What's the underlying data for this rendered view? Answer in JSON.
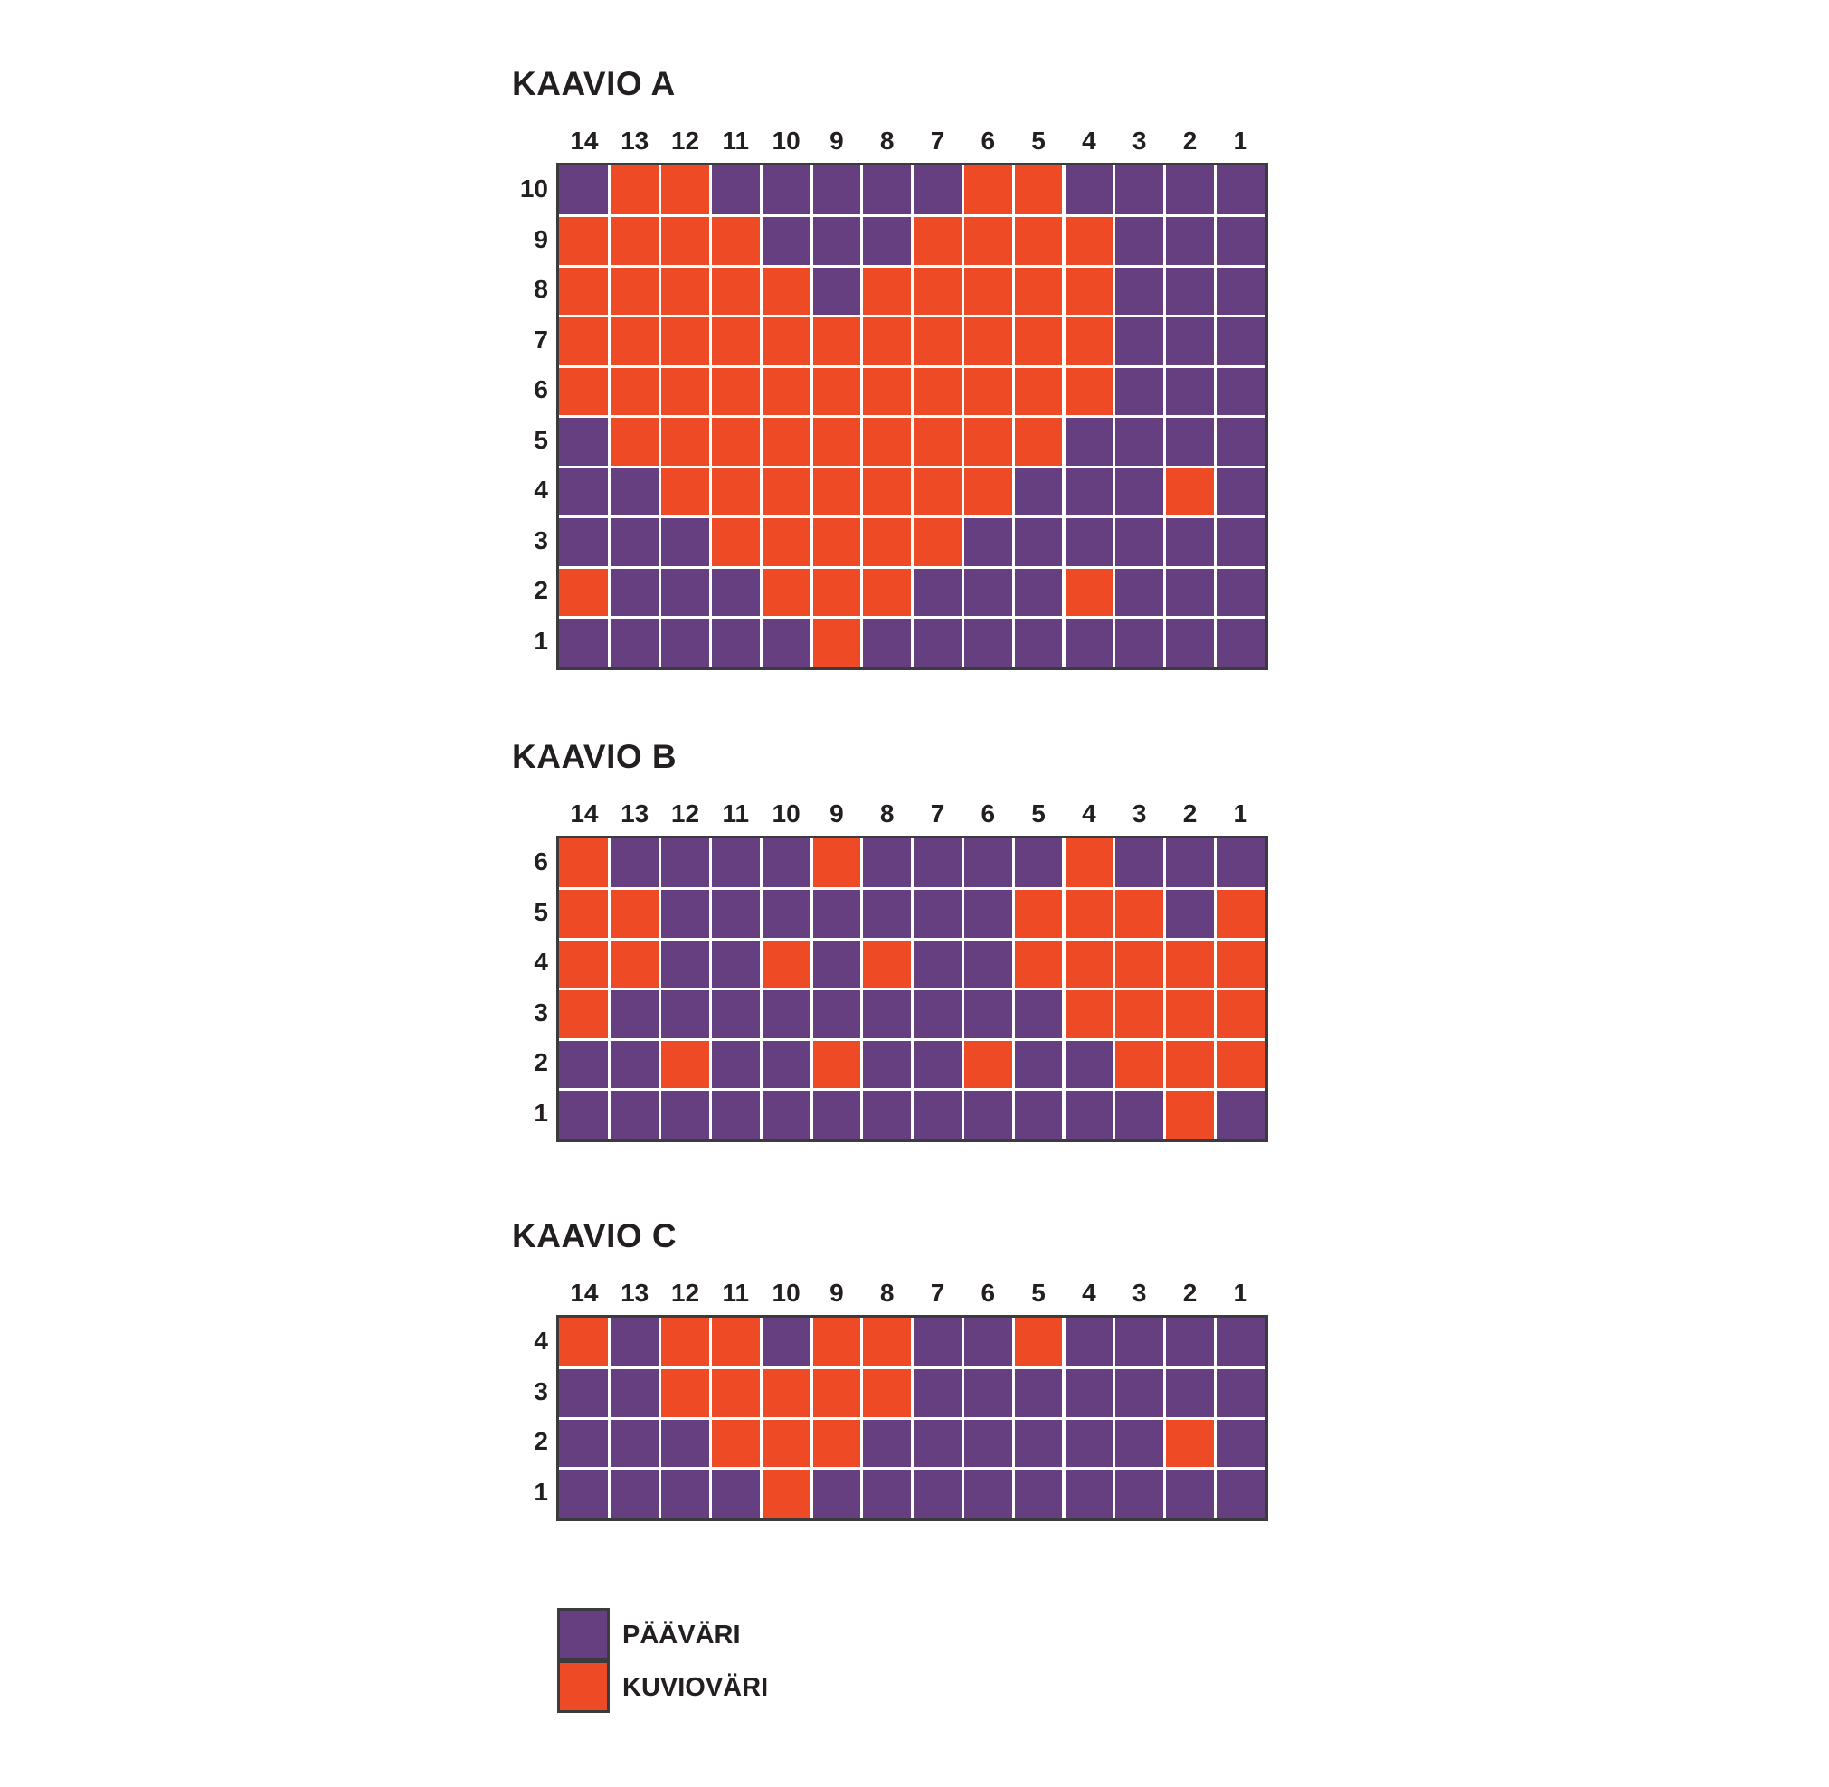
{
  "colors": {
    "main": "#663f80",
    "pattern": "#ee4a26",
    "grid_line": "#ffffff",
    "border": "#3b3a3c"
  },
  "chart_data": [
    {
      "type": "heatmap",
      "title": "KAAVIO A",
      "columns": [
        "14",
        "13",
        "12",
        "11",
        "10",
        "9",
        "8",
        "7",
        "6",
        "5",
        "4",
        "3",
        "2",
        "1"
      ],
      "rows": [
        "10",
        "9",
        "8",
        "7",
        "6",
        "5",
        "4",
        "3",
        "2",
        "1"
      ],
      "cells": [
        [
          0,
          1,
          1,
          0,
          0,
          0,
          0,
          0,
          1,
          1,
          0,
          0,
          0,
          0
        ],
        [
          1,
          1,
          1,
          1,
          0,
          0,
          0,
          1,
          1,
          1,
          1,
          0,
          0,
          0
        ],
        [
          1,
          1,
          1,
          1,
          1,
          0,
          1,
          1,
          1,
          1,
          1,
          0,
          0,
          0
        ],
        [
          1,
          1,
          1,
          1,
          1,
          1,
          1,
          1,
          1,
          1,
          1,
          0,
          0,
          0
        ],
        [
          1,
          1,
          1,
          1,
          1,
          1,
          1,
          1,
          1,
          1,
          1,
          0,
          0,
          0
        ],
        [
          0,
          1,
          1,
          1,
          1,
          1,
          1,
          1,
          1,
          1,
          0,
          0,
          0,
          0
        ],
        [
          0,
          0,
          1,
          1,
          1,
          1,
          1,
          1,
          1,
          0,
          0,
          0,
          1,
          0
        ],
        [
          0,
          0,
          0,
          1,
          1,
          1,
          1,
          1,
          0,
          0,
          0,
          0,
          0,
          0
        ],
        [
          1,
          0,
          0,
          0,
          1,
          1,
          1,
          0,
          0,
          0,
          1,
          0,
          0,
          0
        ],
        [
          0,
          0,
          0,
          0,
          0,
          1,
          0,
          0,
          0,
          0,
          0,
          0,
          0,
          0
        ]
      ]
    },
    {
      "type": "heatmap",
      "title": "KAAVIO B",
      "columns": [
        "14",
        "13",
        "12",
        "11",
        "10",
        "9",
        "8",
        "7",
        "6",
        "5",
        "4",
        "3",
        "2",
        "1"
      ],
      "rows": [
        "6",
        "5",
        "4",
        "3",
        "2",
        "1"
      ],
      "cells": [
        [
          1,
          0,
          0,
          0,
          0,
          1,
          0,
          0,
          0,
          0,
          1,
          0,
          0,
          0
        ],
        [
          1,
          1,
          0,
          0,
          0,
          0,
          0,
          0,
          0,
          1,
          1,
          1,
          0,
          1
        ],
        [
          1,
          1,
          0,
          0,
          1,
          0,
          1,
          0,
          0,
          1,
          1,
          1,
          1,
          1
        ],
        [
          1,
          0,
          0,
          0,
          0,
          0,
          0,
          0,
          0,
          0,
          1,
          1,
          1,
          1
        ],
        [
          0,
          0,
          1,
          0,
          0,
          1,
          0,
          0,
          1,
          0,
          0,
          1,
          1,
          1
        ],
        [
          0,
          0,
          0,
          0,
          0,
          0,
          0,
          0,
          0,
          0,
          0,
          0,
          1,
          0
        ]
      ]
    },
    {
      "type": "heatmap",
      "title": "KAAVIO C",
      "columns": [
        "14",
        "13",
        "12",
        "11",
        "10",
        "9",
        "8",
        "7",
        "6",
        "5",
        "4",
        "3",
        "2",
        "1"
      ],
      "rows": [
        "4",
        "3",
        "2",
        "1"
      ],
      "cells": [
        [
          1,
          0,
          1,
          1,
          0,
          1,
          1,
          0,
          0,
          1,
          0,
          0,
          0,
          0
        ],
        [
          0,
          0,
          1,
          1,
          1,
          1,
          1,
          0,
          0,
          0,
          0,
          0,
          0,
          0
        ],
        [
          0,
          0,
          0,
          1,
          1,
          1,
          0,
          0,
          0,
          0,
          0,
          0,
          1,
          0
        ],
        [
          0,
          0,
          0,
          0,
          1,
          0,
          0,
          0,
          0,
          0,
          0,
          0,
          0,
          0
        ]
      ]
    }
  ],
  "legend": [
    {
      "label": "PÄÄVÄRI",
      "value": 0
    },
    {
      "label": "KUVIOVÄRI",
      "value": 1
    }
  ]
}
